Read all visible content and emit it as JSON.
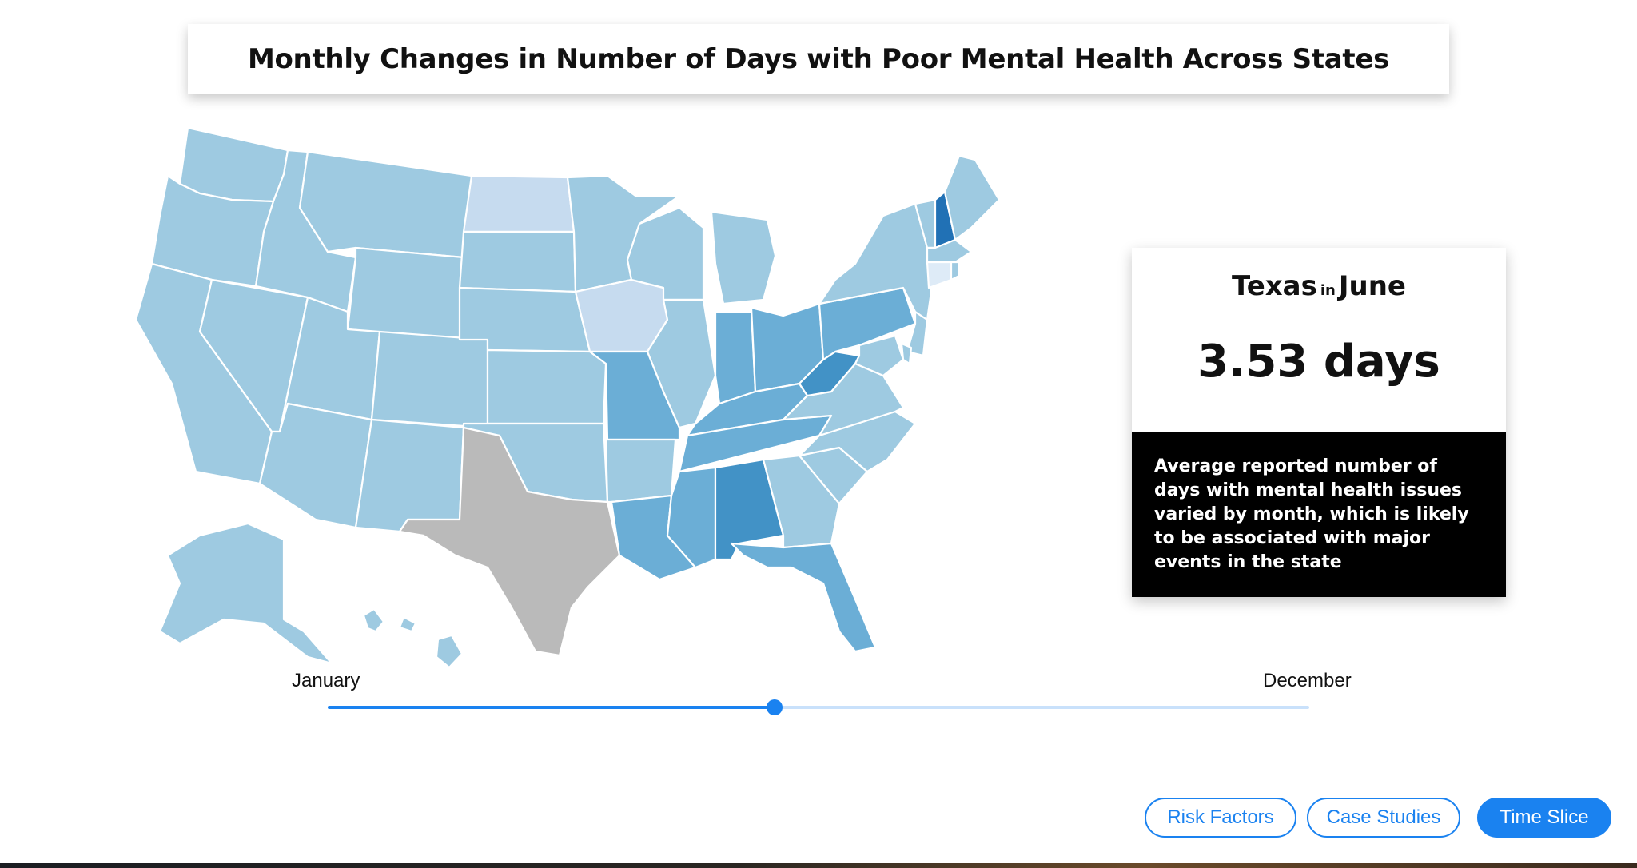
{
  "title": "Monthly Changes in Number of Days with Poor Mental Health Across States",
  "info_card": {
    "state": "Texas",
    "connector": "in",
    "month": "June",
    "value": "3.53 days",
    "description": "Average reported number of days with mental health issues varied by month, which is likely to be associated with major events in the state"
  },
  "slider": {
    "start_label": "January",
    "end_label": "December",
    "value_fraction": 0.455
  },
  "nav": {
    "risk_factors": "Risk Factors",
    "case_studies": "Case Studies",
    "time_slice": "Time Slice",
    "active": "time_slice"
  },
  "map": {
    "selected_state": "TX",
    "selected_color": "#bababa",
    "palette": {
      "lightest": "#c6dbef",
      "light": "#9ecae1",
      "medium": "#6baed6",
      "dark": "#4292c6",
      "darkest": "#2171b5"
    }
  }
}
